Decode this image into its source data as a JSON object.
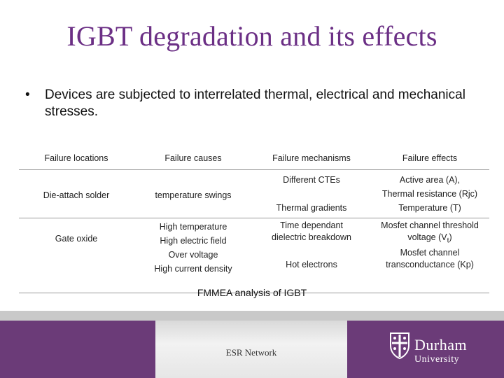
{
  "slide": {
    "title": "IGBT degradation and its effects",
    "bullet_marker": "•",
    "bullet": "Devices are subjected to interrelated thermal, electrical and mechanical stresses."
  },
  "table": {
    "headers": [
      "Failure locations",
      "Failure causes",
      "Failure mechanisms",
      "Failure effects"
    ],
    "rows": [
      {
        "location": "Die-attach solder",
        "cause": "temperature swings",
        "mechanisms": [
          "Different CTEs",
          "Thermal gradients"
        ],
        "effects": [
          "Active area (A),",
          "Thermal resistance (Rjc)",
          "Temperature (T)"
        ]
      },
      {
        "location": "Gate oxide",
        "causes": [
          "High temperature",
          "High electric field",
          "Over voltage",
          "High current density"
        ],
        "mechanisms": [
          "Time dependant dielectric breakdown",
          "Hot electrons"
        ],
        "effects": [
          "Mosfet channel threshold voltage (V",
          "t",
          ")",
          "Mosfet channel transconductance (Kp)"
        ]
      }
    ],
    "caption": "FMMEA analysis of IGBT"
  },
  "footer": {
    "text": "ESR Network",
    "logo_name": "Durham",
    "logo_sub": "University"
  },
  "colors": {
    "title": "#6b2f85",
    "footer_band": "#6b3b78",
    "grey_band": "#c9c9c9"
  }
}
